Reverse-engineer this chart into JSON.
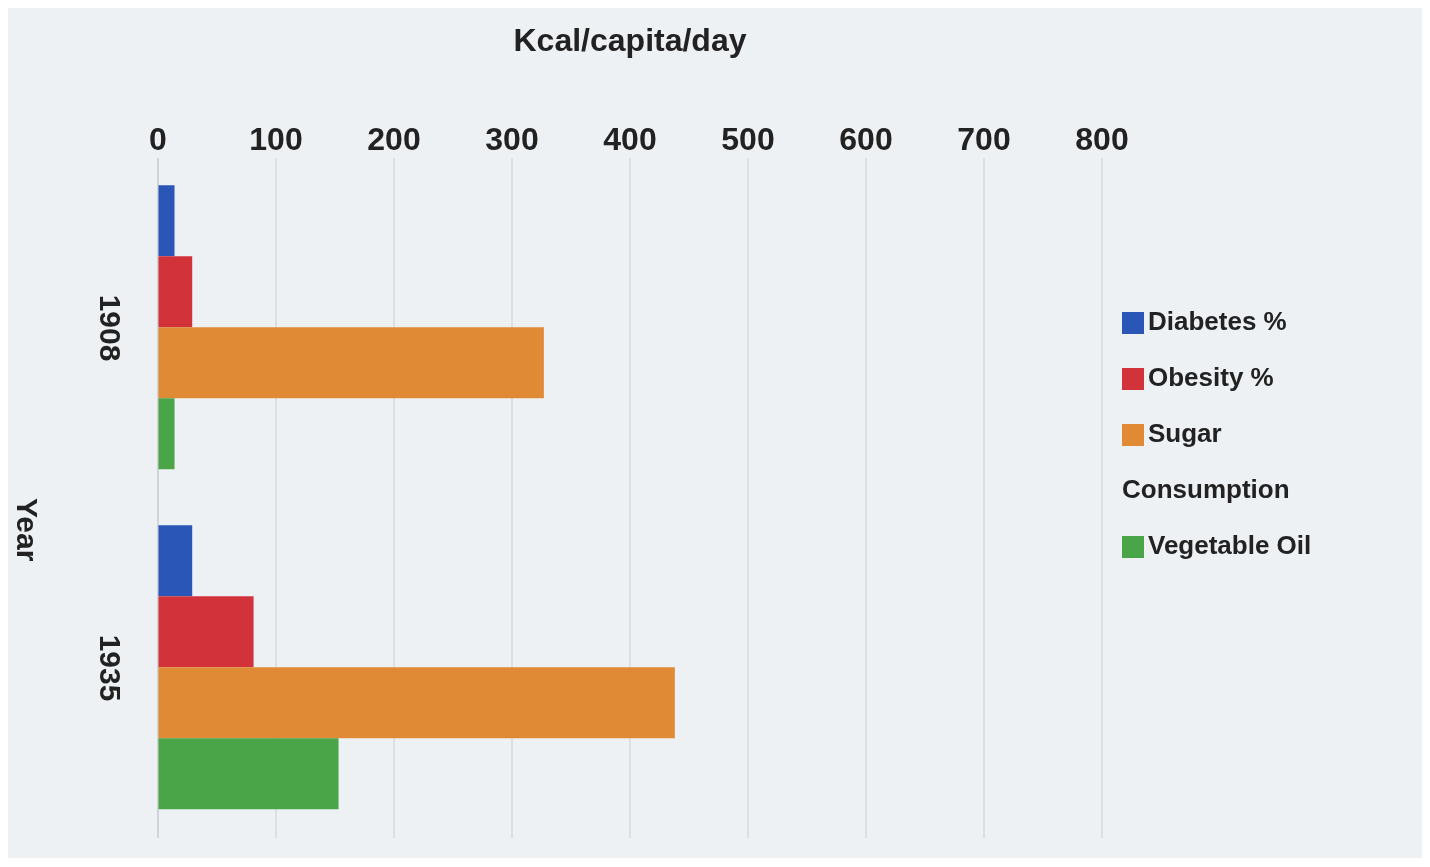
{
  "chart_data": {
    "type": "bar",
    "orientation": "horizontal",
    "xlabel": "Kcal/capita/day",
    "ylabel": "Year",
    "categories": [
      "1908",
      "1935"
    ],
    "series": [
      {
        "name": "Diabetes %",
        "color": "#2a56b8",
        "values": [
          14,
          29
        ]
      },
      {
        "name": "Obesity %",
        "color": "#d2333a",
        "values": [
          29,
          81
        ]
      },
      {
        "name": "Sugar Consumption",
        "color": "#e08a35",
        "values": [
          327,
          438
        ]
      },
      {
        "name": "Vegetable Oil",
        "color": "#4aa548",
        "values": [
          14,
          153
        ]
      }
    ],
    "xlim": [
      0,
      800
    ],
    "xticks": [
      0,
      100,
      200,
      300,
      400,
      500,
      600,
      700,
      800
    ],
    "grid": "x",
    "legend": "right"
  }
}
